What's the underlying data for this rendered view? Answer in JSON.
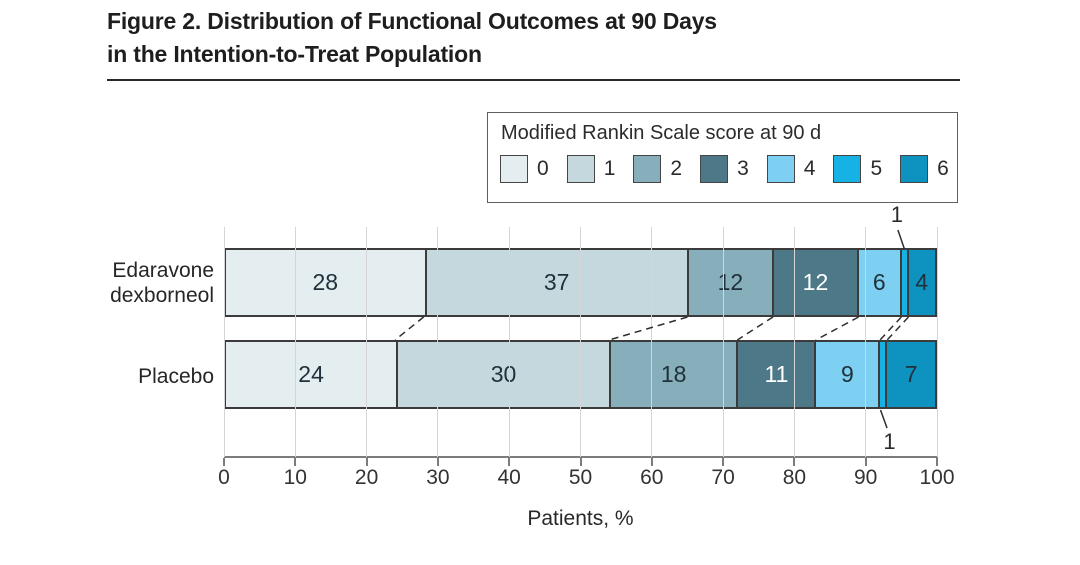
{
  "figure": {
    "title_line1": "Figure 2. Distribution of Functional Outcomes at 90 Days",
    "title_line2": "in the Intention-to-Treat Population"
  },
  "legend": {
    "title": "Modified Rankin Scale score at 90 d",
    "items": [
      {
        "label": "0",
        "color": "#e4edf0"
      },
      {
        "label": "1",
        "color": "#c5d8de"
      },
      {
        "label": "2",
        "color": "#86aebb"
      },
      {
        "label": "3",
        "color": "#4d7888"
      },
      {
        "label": "4",
        "color": "#7dd0f2"
      },
      {
        "label": "5",
        "color": "#16b2e6"
      },
      {
        "label": "6",
        "color": "#0e93c0"
      }
    ]
  },
  "chart_data": {
    "type": "bar",
    "stacked": true,
    "orientation": "horizontal",
    "title": "Figure 2. Distribution of Functional Outcomes at 90 Days in the Intention-to-Treat Population",
    "legend_title": "Modified Rankin Scale score at 90 d",
    "legend_position": "top-right",
    "categories": [
      "Edaravone\ndexborneol",
      "Placebo"
    ],
    "series": [
      {
        "name": "0",
        "color": "#e4edf0",
        "values": [
          28,
          24
        ]
      },
      {
        "name": "1",
        "color": "#c5d8de",
        "values": [
          37,
          30
        ]
      },
      {
        "name": "2",
        "color": "#86aebb",
        "values": [
          12,
          18
        ]
      },
      {
        "name": "3",
        "color": "#4d7888",
        "values": [
          12,
          11
        ]
      },
      {
        "name": "4",
        "color": "#7dd0f2",
        "values": [
          6,
          9
        ]
      },
      {
        "name": "5",
        "color": "#16b2e6",
        "values": [
          1,
          1
        ]
      },
      {
        "name": "6",
        "color": "#0e93c0",
        "values": [
          4,
          7
        ]
      }
    ],
    "xlabel": "Patients, %",
    "xlim": [
      0,
      100
    ],
    "xticks": [
      0,
      10,
      20,
      30,
      40,
      50,
      60,
      70,
      80,
      90,
      100
    ],
    "grid": true,
    "connectors_between_bars": true,
    "callouts": [
      {
        "category_index": 0,
        "series_name": "5",
        "value": 1,
        "placement": "above"
      },
      {
        "category_index": 1,
        "series_name": "5",
        "value": 1,
        "placement": "below"
      }
    ]
  }
}
